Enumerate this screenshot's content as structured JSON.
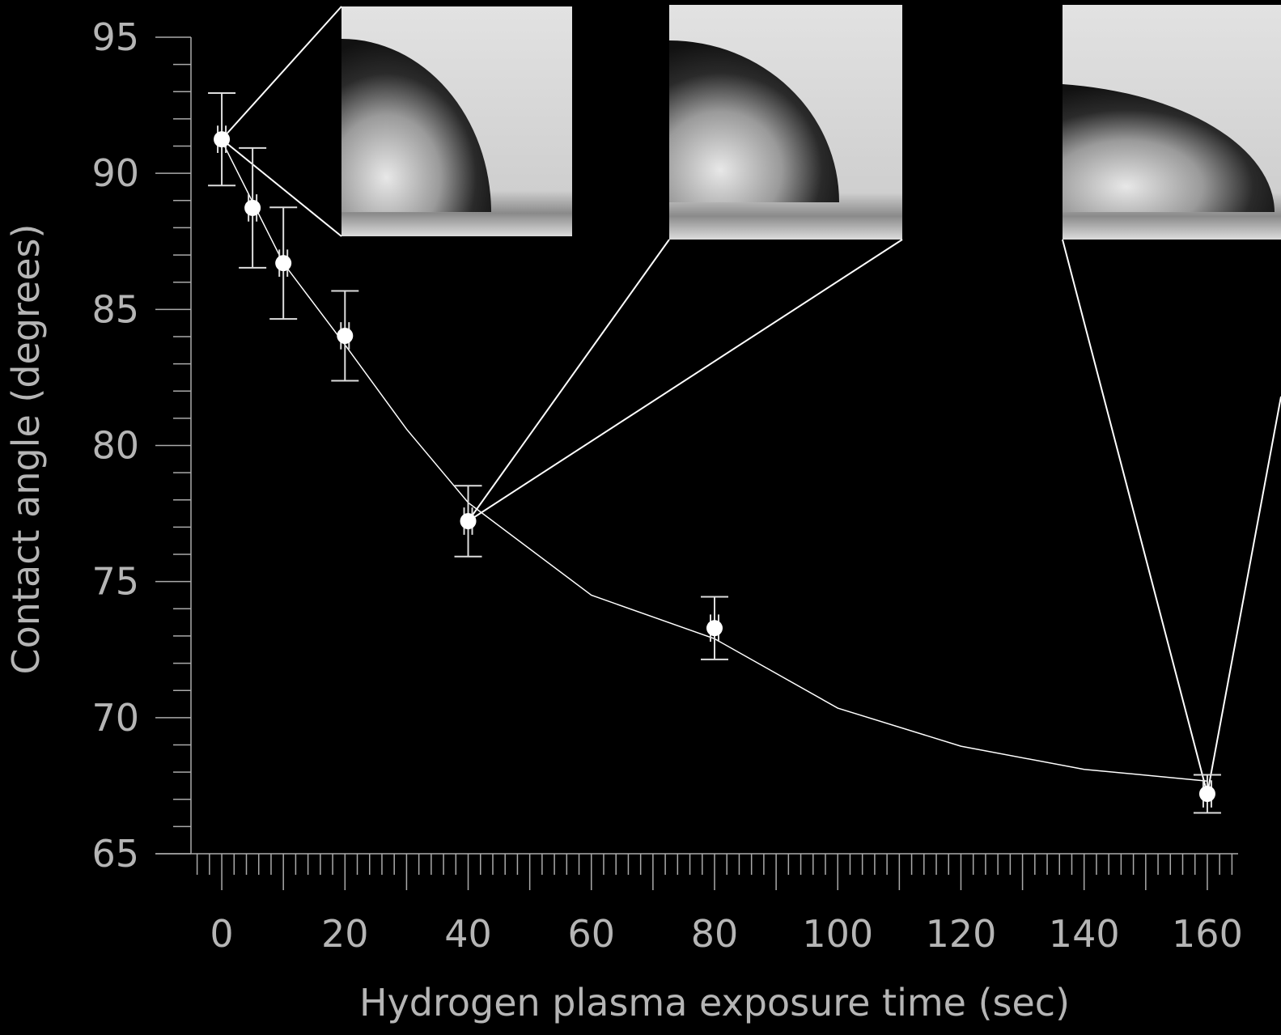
{
  "chart_data": {
    "type": "scatter",
    "x_label": "Hydrogen plasma exposure time (sec)",
    "y_label": "Contact angle (degrees)",
    "x": [
      0,
      5,
      10,
      20,
      40,
      80,
      160
    ],
    "values": [
      91.25,
      88.73,
      86.7,
      84.03,
      77.22,
      73.29,
      67.2
    ],
    "errors": [
      1.7,
      2.2,
      2.05,
      1.65,
      1.3,
      1.15,
      0.7
    ],
    "inner_errors": [
      0.5,
      0.5,
      0.5,
      0.5,
      0.5,
      0.5,
      0.5
    ],
    "color": "#ffffff",
    "fit": {
      "x": [
        0,
        10,
        20,
        30,
        40,
        60,
        80,
        100,
        120,
        140,
        160
      ],
      "values": [
        91.2,
        86.7,
        83.7,
        80.6,
        77.9,
        74.5,
        72.9,
        70.35,
        68.95,
        68.1,
        67.67
      ]
    },
    "xlim": [
      -5,
      165
    ],
    "ylim": [
      65,
      95
    ],
    "xticks": [
      0,
      20,
      40,
      60,
      80,
      100,
      120,
      140,
      160
    ],
    "x_minor_ticks": [
      -4,
      -2,
      2,
      4,
      6,
      8,
      10,
      12,
      14,
      16,
      18,
      22,
      24,
      26,
      28,
      30,
      32,
      34,
      36,
      38,
      42,
      44,
      46,
      48,
      50,
      52,
      54,
      56,
      58,
      62,
      64,
      66,
      68,
      70,
      72,
      74,
      76,
      78,
      82,
      84,
      86,
      88,
      90,
      92,
      94,
      96,
      98,
      102,
      104,
      106,
      108,
      110,
      112,
      114,
      116,
      118,
      122,
      124,
      126,
      128,
      130,
      132,
      134,
      136,
      138,
      142,
      144,
      146,
      148,
      150,
      152,
      154,
      156,
      158,
      162,
      164
    ],
    "yticks": [
      65,
      70,
      75,
      80,
      85,
      90,
      95
    ],
    "y_minor_ticks": [
      66,
      67,
      68,
      69,
      71,
      72,
      73,
      74,
      76,
      77,
      78,
      79,
      81,
      82,
      83,
      84,
      86,
      87,
      88,
      89,
      91,
      92,
      93,
      94
    ]
  }
}
